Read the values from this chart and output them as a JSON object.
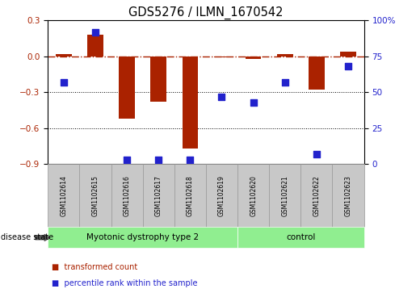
{
  "title": "GDS5276 / ILMN_1670542",
  "samples": [
    "GSM1102614",
    "GSM1102615",
    "GSM1102616",
    "GSM1102617",
    "GSM1102618",
    "GSM1102619",
    "GSM1102620",
    "GSM1102621",
    "GSM1102622",
    "GSM1102623"
  ],
  "transformed_count": [
    0.02,
    0.18,
    -0.52,
    -0.38,
    -0.77,
    -0.01,
    -0.02,
    0.02,
    -0.28,
    0.04
  ],
  "percentile_rank": [
    57,
    92,
    3,
    3,
    3,
    47,
    43,
    57,
    7,
    68
  ],
  "ylim_left": [
    -0.9,
    0.3
  ],
  "ylim_right": [
    0,
    100
  ],
  "yticks_left": [
    -0.9,
    -0.6,
    -0.3,
    0.0,
    0.3
  ],
  "yticks_right": [
    0,
    25,
    50,
    75,
    100
  ],
  "ytick_labels_right": [
    "0",
    "25",
    "50",
    "75",
    "100%"
  ],
  "red_color": "#AA2200",
  "blue_color": "#2222CC",
  "hline_y": 0.0,
  "groups": [
    {
      "label": "Myotonic dystrophy type 2",
      "start": 0,
      "end": 6,
      "color": "#90EE90"
    },
    {
      "label": "control",
      "start": 6,
      "end": 10,
      "color": "#90EE90"
    }
  ],
  "disease_state_label": "disease state",
  "legend_items": [
    {
      "label": "transformed count",
      "color": "#AA2200"
    },
    {
      "label": "percentile rank within the sample",
      "color": "#2222CC"
    }
  ],
  "bar_width": 0.5,
  "dot_size": 28,
  "cell_color": "#C8C8C8",
  "cell_edge_color": "#999999"
}
